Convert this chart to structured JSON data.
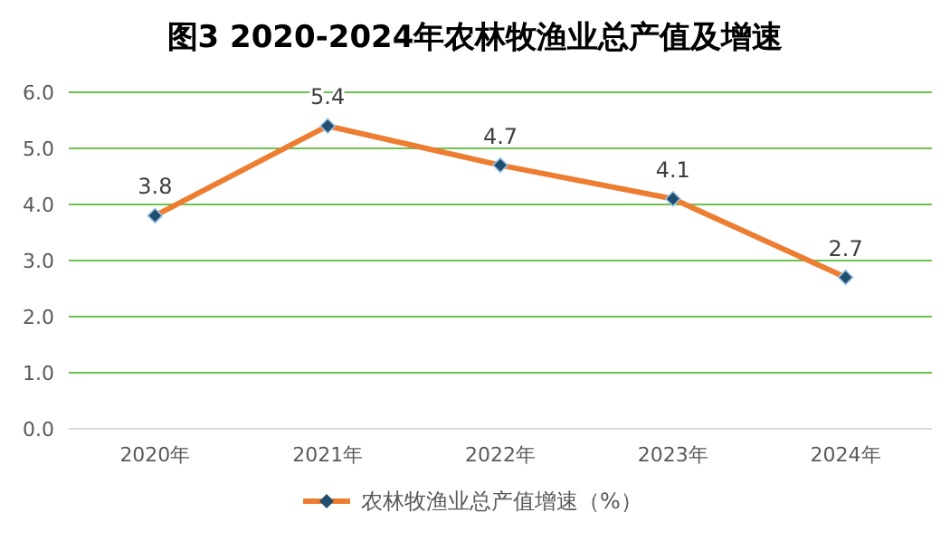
{
  "chart_data": {
    "type": "line",
    "title": "图3 2020-2024年农林牧渔业总产值及增速",
    "categories": [
      "2020年",
      "2021年",
      "2022年",
      "2023年",
      "2024年"
    ],
    "series": [
      {
        "name": "农林牧渔业总产值增速（%）",
        "color": "#ed7d31",
        "values": [
          3.8,
          5.4,
          4.7,
          4.1,
          2.7
        ]
      }
    ],
    "ylim": [
      0,
      6
    ],
    "yticks": [
      {
        "value": 0,
        "label": "0.0"
      },
      {
        "value": 1,
        "label": "1.0"
      },
      {
        "value": 2,
        "label": "2.0"
      },
      {
        "value": 3,
        "label": "3.0"
      },
      {
        "value": 4,
        "label": "4.0"
      },
      {
        "value": 5,
        "label": "5.0"
      },
      {
        "value": 6,
        "label": "6.0"
      }
    ],
    "grid": "y",
    "legend": "bottom",
    "marker": "diamond",
    "line_style": "solid",
    "data_labels": true
  }
}
